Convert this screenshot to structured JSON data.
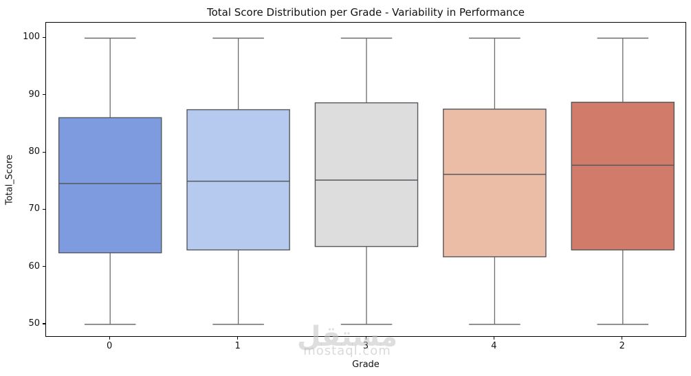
{
  "figure": {
    "title": "Total Score Distribution per Grade - Variability in Performance",
    "xlabel": "Grade",
    "ylabel": "Total_Score"
  },
  "watermark": {
    "text_ar": "مستقل",
    "text_en": "mostaql.com"
  },
  "chart_data": {
    "type": "box",
    "title": "Total Score Distribution per Grade - Variability in Performance",
    "xlabel": "Grade",
    "ylabel": "Total_Score",
    "ylim": [
      47.7,
      102.7
    ],
    "y_ticks": [
      50,
      60,
      70,
      80,
      90,
      100
    ],
    "categories": [
      "0",
      "1",
      "3",
      "4",
      "2"
    ],
    "grid": false,
    "legend_position": "none",
    "edge_color": "#54575c",
    "whisker_color": "#6b6b6b",
    "boxes": [
      {
        "category": "0",
        "whisker_low": 50,
        "q1": 62.5,
        "median": 74.6,
        "q3": 86.1,
        "whisker_high": 100,
        "fill": "#7F9BE0"
      },
      {
        "category": "1",
        "whisker_low": 50,
        "q1": 63.0,
        "median": 75.0,
        "q3": 87.5,
        "whisker_high": 100,
        "fill": "#B6CAF0"
      },
      {
        "category": "3",
        "whisker_low": 50,
        "q1": 63.6,
        "median": 75.2,
        "q3": 88.7,
        "whisker_high": 100,
        "fill": "#DDDDDD"
      },
      {
        "category": "4",
        "whisker_low": 50,
        "q1": 61.8,
        "median": 76.2,
        "q3": 87.6,
        "whisker_high": 100,
        "fill": "#ECBDA6"
      },
      {
        "category": "2",
        "whisker_low": 50,
        "q1": 63.0,
        "median": 77.8,
        "q3": 88.8,
        "whisker_high": 100,
        "fill": "#D17C6B"
      }
    ]
  }
}
